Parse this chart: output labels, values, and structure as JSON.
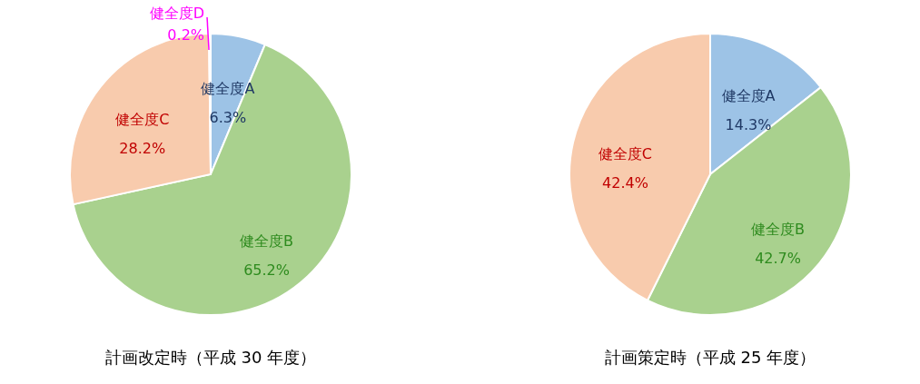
{
  "chart_data": [
    {
      "type": "pie",
      "title": "計画改定時（平成 30 年度）",
      "categories": [
        "健全度A",
        "健全度B",
        "健全度C",
        "健全度D"
      ],
      "values": [
        6.3,
        65.2,
        28.2,
        0.2
      ],
      "colors": [
        "#9dc3e6",
        "#a9d18e",
        "#f8cbad",
        "#ffc000"
      ],
      "value_labels": [
        "6.3%",
        "65.2%",
        "28.2%",
        "0.2%"
      ]
    },
    {
      "type": "pie",
      "title": "計画策定時（平成 25 年度）",
      "categories": [
        "健全度A",
        "健全度B",
        "健全度C"
      ],
      "values": [
        14.3,
        42.7,
        42.4
      ],
      "colors": [
        "#9dc3e6",
        "#a9d18e",
        "#f8cbad"
      ],
      "value_labels": [
        "14.3%",
        "42.7%",
        "42.4%"
      ]
    }
  ]
}
